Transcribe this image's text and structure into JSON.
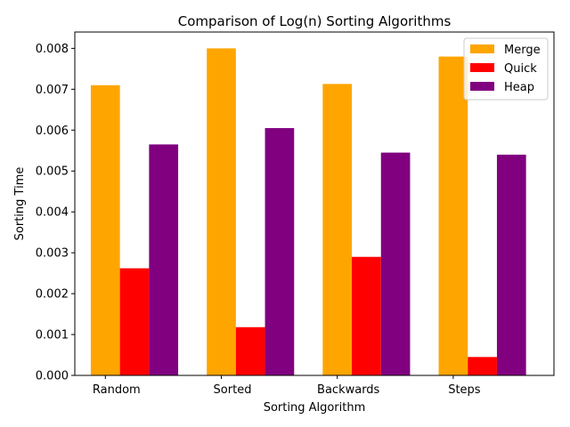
{
  "chart_data": {
    "type": "bar",
    "title": "Comparison of Log(n) Sorting Algorithms",
    "xlabel": "Sorting Algorithm",
    "ylabel": "Sorting Time",
    "categories": [
      "Random",
      "Sorted",
      "Backwards",
      "Steps"
    ],
    "series": [
      {
        "name": "Merge",
        "color": "#ffa500",
        "values": [
          0.0071,
          0.008,
          0.00713,
          0.0078
        ]
      },
      {
        "name": "Quick",
        "color": "#ff0000",
        "values": [
          0.00262,
          0.00118,
          0.0029,
          0.00045
        ]
      },
      {
        "name": "Heap",
        "color": "#800080",
        "values": [
          0.00565,
          0.00605,
          0.00545,
          0.0054
        ]
      }
    ],
    "ylim": [
      0,
      0.0084
    ],
    "yticks": [
      "0.000",
      "0.001",
      "0.002",
      "0.003",
      "0.004",
      "0.005",
      "0.006",
      "0.007",
      "0.008"
    ],
    "legend_position": "top-right",
    "grid": false
  }
}
